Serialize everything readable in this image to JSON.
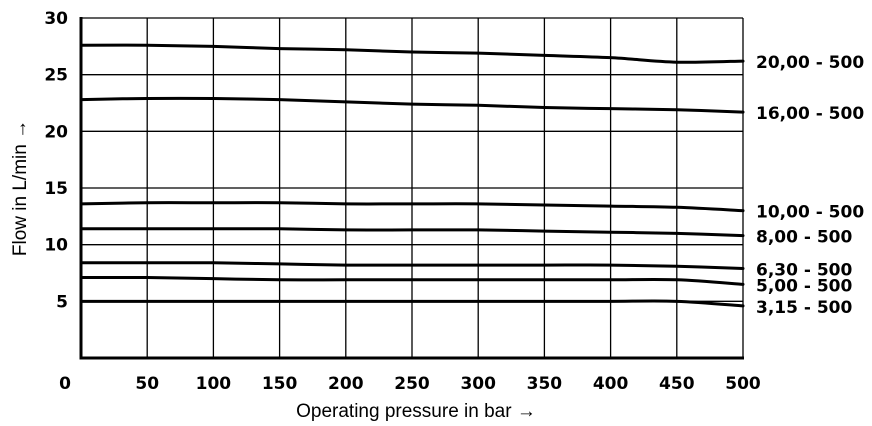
{
  "chart_data": {
    "type": "line",
    "xlabel": "Operating pressure in bar →",
    "ylabel": "Flow in L/min →",
    "xlim": [
      0,
      500
    ],
    "ylim": [
      0,
      30
    ],
    "x_ticks": [
      "0",
      "50",
      "100",
      "150",
      "200",
      "250",
      "300",
      "350",
      "400",
      "450",
      "500"
    ],
    "y_ticks": [
      "5",
      "10",
      "15",
      "20",
      "25",
      "30"
    ],
    "grid": true,
    "series": [
      {
        "name": "20,00 - 500",
        "x": [
          0,
          50,
          100,
          150,
          200,
          250,
          300,
          350,
          400,
          450,
          500
        ],
        "y": [
          27.6,
          27.6,
          27.5,
          27.3,
          27.2,
          27.0,
          26.9,
          26.7,
          26.5,
          26.1,
          26.2
        ]
      },
      {
        "name": "16,00 - 500",
        "x": [
          0,
          50,
          100,
          150,
          200,
          250,
          300,
          350,
          400,
          450,
          500
        ],
        "y": [
          22.8,
          22.9,
          22.9,
          22.8,
          22.6,
          22.4,
          22.3,
          22.1,
          22.0,
          21.9,
          21.7
        ]
      },
      {
        "name": "10,00 - 500",
        "x": [
          0,
          50,
          100,
          150,
          200,
          250,
          300,
          350,
          400,
          450,
          500
        ],
        "y": [
          13.6,
          13.7,
          13.7,
          13.7,
          13.6,
          13.6,
          13.6,
          13.5,
          13.4,
          13.3,
          13.0
        ]
      },
      {
        "name": "8,00 - 500",
        "x": [
          0,
          50,
          100,
          150,
          200,
          250,
          300,
          350,
          400,
          450,
          500
        ],
        "y": [
          11.4,
          11.4,
          11.4,
          11.4,
          11.3,
          11.3,
          11.3,
          11.2,
          11.1,
          11.0,
          10.8
        ]
      },
      {
        "name": "6,30 - 500",
        "x": [
          0,
          50,
          100,
          150,
          200,
          250,
          300,
          350,
          400,
          450,
          500
        ],
        "y": [
          8.4,
          8.4,
          8.4,
          8.3,
          8.2,
          8.2,
          8.2,
          8.2,
          8.2,
          8.1,
          7.9
        ]
      },
      {
        "name": "5,00 - 500",
        "x": [
          0,
          50,
          100,
          150,
          200,
          250,
          300,
          350,
          400,
          450,
          500
        ],
        "y": [
          7.1,
          7.1,
          7.0,
          6.9,
          6.9,
          6.9,
          6.9,
          6.9,
          6.9,
          6.9,
          6.5
        ]
      },
      {
        "name": "3,15 - 500",
        "x": [
          0,
          50,
          100,
          150,
          200,
          250,
          300,
          350,
          400,
          450,
          500
        ],
        "y": [
          5.0,
          5.0,
          5.0,
          5.0,
          5.0,
          5.0,
          5.0,
          5.0,
          5.0,
          5.0,
          4.6
        ]
      }
    ]
  }
}
